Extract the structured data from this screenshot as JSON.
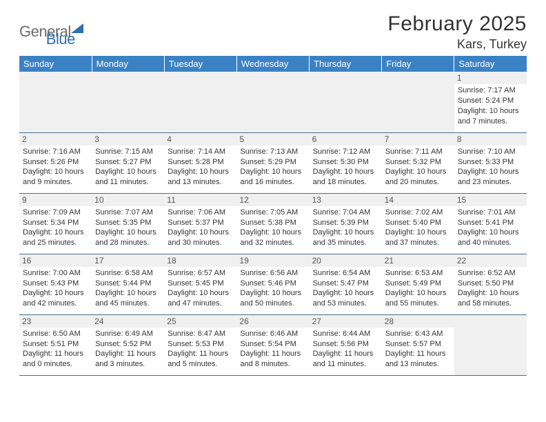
{
  "brand": {
    "text_a": "General",
    "text_b": "Blue",
    "triangle_color": "#2f6fae"
  },
  "title": {
    "month_year": "February 2025",
    "location": "Kars, Turkey"
  },
  "style": {
    "header_bg": "#3b82c4",
    "header_fg": "#ffffff",
    "daynum_bg": "#f0f0f0",
    "border_color": "#4a6b8a",
    "font_family": "Arial",
    "month_fontsize_pt": 22,
    "location_fontsize_pt": 14,
    "dayheader_fontsize_pt": 10,
    "cell_fontsize_pt": 8
  },
  "day_headers": [
    "Sunday",
    "Monday",
    "Tuesday",
    "Wednesday",
    "Thursday",
    "Friday",
    "Saturday"
  ],
  "weeks": [
    [
      null,
      null,
      null,
      null,
      null,
      null,
      {
        "n": "1",
        "sunrise": "7:17 AM",
        "sunset": "5:24 PM",
        "day_h": 10,
        "day_m": 7
      }
    ],
    [
      {
        "n": "2",
        "sunrise": "7:16 AM",
        "sunset": "5:26 PM",
        "day_h": 10,
        "day_m": 9
      },
      {
        "n": "3",
        "sunrise": "7:15 AM",
        "sunset": "5:27 PM",
        "day_h": 10,
        "day_m": 11
      },
      {
        "n": "4",
        "sunrise": "7:14 AM",
        "sunset": "5:28 PM",
        "day_h": 10,
        "day_m": 13
      },
      {
        "n": "5",
        "sunrise": "7:13 AM",
        "sunset": "5:29 PM",
        "day_h": 10,
        "day_m": 16
      },
      {
        "n": "6",
        "sunrise": "7:12 AM",
        "sunset": "5:30 PM",
        "day_h": 10,
        "day_m": 18
      },
      {
        "n": "7",
        "sunrise": "7:11 AM",
        "sunset": "5:32 PM",
        "day_h": 10,
        "day_m": 20
      },
      {
        "n": "8",
        "sunrise": "7:10 AM",
        "sunset": "5:33 PM",
        "day_h": 10,
        "day_m": 23
      }
    ],
    [
      {
        "n": "9",
        "sunrise": "7:09 AM",
        "sunset": "5:34 PM",
        "day_h": 10,
        "day_m": 25
      },
      {
        "n": "10",
        "sunrise": "7:07 AM",
        "sunset": "5:35 PM",
        "day_h": 10,
        "day_m": 28
      },
      {
        "n": "11",
        "sunrise": "7:06 AM",
        "sunset": "5:37 PM",
        "day_h": 10,
        "day_m": 30
      },
      {
        "n": "12",
        "sunrise": "7:05 AM",
        "sunset": "5:38 PM",
        "day_h": 10,
        "day_m": 32
      },
      {
        "n": "13",
        "sunrise": "7:04 AM",
        "sunset": "5:39 PM",
        "day_h": 10,
        "day_m": 35
      },
      {
        "n": "14",
        "sunrise": "7:02 AM",
        "sunset": "5:40 PM",
        "day_h": 10,
        "day_m": 37
      },
      {
        "n": "15",
        "sunrise": "7:01 AM",
        "sunset": "5:41 PM",
        "day_h": 10,
        "day_m": 40
      }
    ],
    [
      {
        "n": "16",
        "sunrise": "7:00 AM",
        "sunset": "5:43 PM",
        "day_h": 10,
        "day_m": 42
      },
      {
        "n": "17",
        "sunrise": "6:58 AM",
        "sunset": "5:44 PM",
        "day_h": 10,
        "day_m": 45
      },
      {
        "n": "18",
        "sunrise": "6:57 AM",
        "sunset": "5:45 PM",
        "day_h": 10,
        "day_m": 47
      },
      {
        "n": "19",
        "sunrise": "6:56 AM",
        "sunset": "5:46 PM",
        "day_h": 10,
        "day_m": 50
      },
      {
        "n": "20",
        "sunrise": "6:54 AM",
        "sunset": "5:47 PM",
        "day_h": 10,
        "day_m": 53
      },
      {
        "n": "21",
        "sunrise": "6:53 AM",
        "sunset": "5:49 PM",
        "day_h": 10,
        "day_m": 55
      },
      {
        "n": "22",
        "sunrise": "6:52 AM",
        "sunset": "5:50 PM",
        "day_h": 10,
        "day_m": 58
      }
    ],
    [
      {
        "n": "23",
        "sunrise": "6:50 AM",
        "sunset": "5:51 PM",
        "day_h": 11,
        "day_m": 0
      },
      {
        "n": "24",
        "sunrise": "6:49 AM",
        "sunset": "5:52 PM",
        "day_h": 11,
        "day_m": 3
      },
      {
        "n": "25",
        "sunrise": "6:47 AM",
        "sunset": "5:53 PM",
        "day_h": 11,
        "day_m": 5
      },
      {
        "n": "26",
        "sunrise": "6:46 AM",
        "sunset": "5:54 PM",
        "day_h": 11,
        "day_m": 8
      },
      {
        "n": "27",
        "sunrise": "6:44 AM",
        "sunset": "5:56 PM",
        "day_h": 11,
        "day_m": 11
      },
      {
        "n": "28",
        "sunrise": "6:43 AM",
        "sunset": "5:57 PM",
        "day_h": 11,
        "day_m": 13
      },
      null
    ]
  ],
  "labels": {
    "sunrise": "Sunrise:",
    "sunset": "Sunset:",
    "daylight": "Daylight:",
    "hours_word": "hours",
    "and_word": "and",
    "minutes_word": "minutes."
  }
}
